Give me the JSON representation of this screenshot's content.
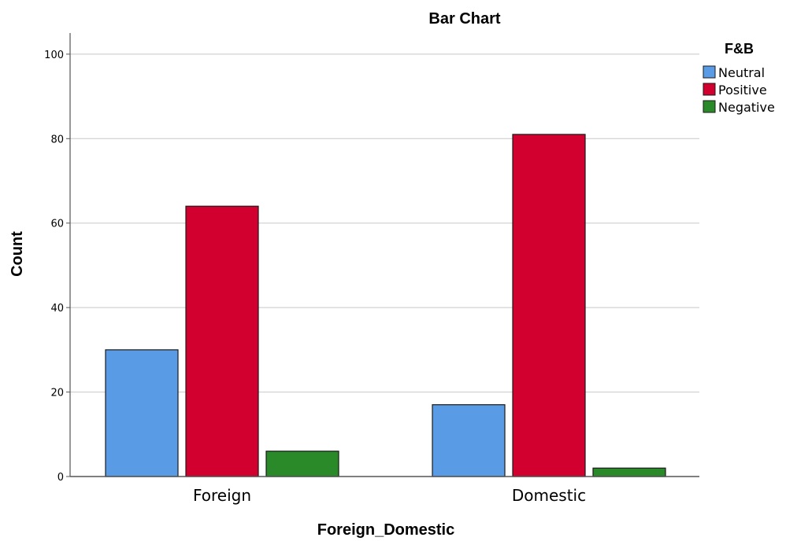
{
  "chart_data": {
    "type": "bar",
    "title": "Bar Chart",
    "xlabel": "Foreign_Domestic",
    "ylabel": "Count",
    "categories": [
      "Foreign",
      "Domestic"
    ],
    "series": [
      {
        "name": "Neutral",
        "values": [
          30,
          17
        ],
        "color": "#5a9be6"
      },
      {
        "name": "Positive",
        "values": [
          64,
          81
        ],
        "color": "#d2002e"
      },
      {
        "name": "Negative",
        "values": [
          6,
          2
        ],
        "color": "#2a8a2a"
      }
    ],
    "ylim": [
      0,
      105
    ],
    "yticks": [
      0,
      20,
      40,
      60,
      80,
      100
    ],
    "grid": true,
    "legend": {
      "title": "F&B",
      "placement": "right"
    }
  }
}
